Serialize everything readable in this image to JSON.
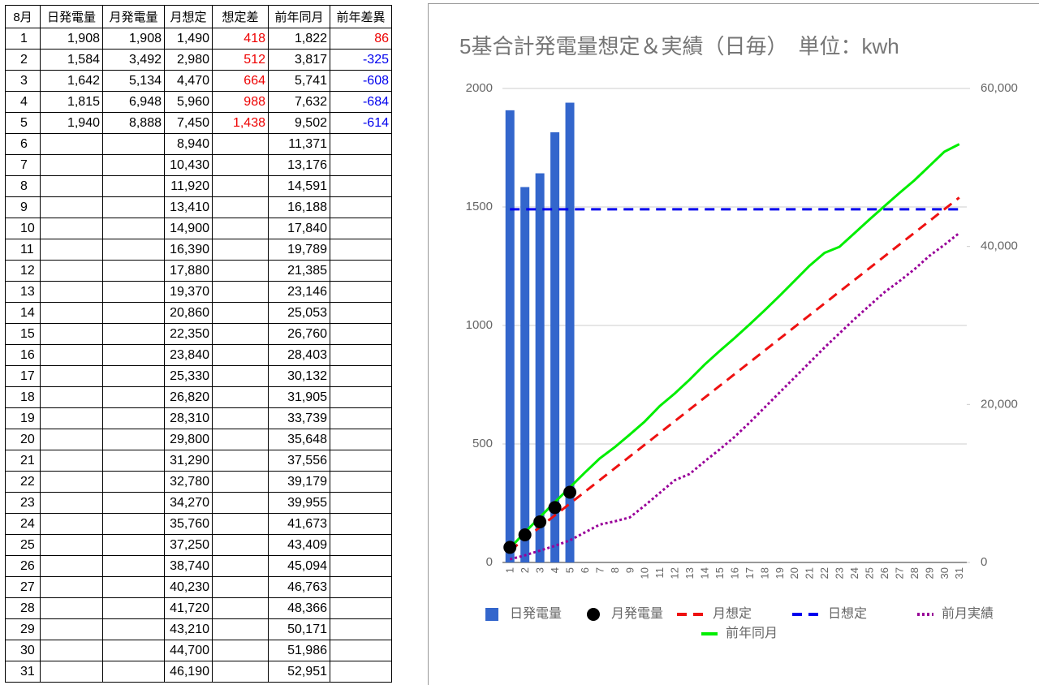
{
  "table": {
    "headers": [
      "8月",
      "日発電量",
      "月発電量",
      "月想定",
      "想定差",
      "前年同月",
      "前年差異"
    ],
    "rows": [
      [
        "1",
        "1,908",
        "1,908",
        "1,490",
        "418",
        "1,822",
        "86"
      ],
      [
        "2",
        "1,584",
        "3,492",
        "2,980",
        "512",
        "3,817",
        "-325"
      ],
      [
        "3",
        "1,642",
        "5,134",
        "4,470",
        "664",
        "5,741",
        "-608"
      ],
      [
        "4",
        "1,815",
        "6,948",
        "5,960",
        "988",
        "7,632",
        "-684"
      ],
      [
        "5",
        "1,940",
        "8,888",
        "7,450",
        "1,438",
        "9,502",
        "-614"
      ],
      [
        "6",
        null,
        null,
        "8,940",
        null,
        "11,371",
        null
      ],
      [
        "7",
        null,
        null,
        "10,430",
        null,
        "13,176",
        null
      ],
      [
        "8",
        null,
        null,
        "11,920",
        null,
        "14,591",
        null
      ],
      [
        "9",
        null,
        null,
        "13,410",
        null,
        "16,188",
        null
      ],
      [
        "10",
        null,
        null,
        "14,900",
        null,
        "17,840",
        null
      ],
      [
        "11",
        null,
        null,
        "16,390",
        null,
        "19,789",
        null
      ],
      [
        "12",
        null,
        null,
        "17,880",
        null,
        "21,385",
        null
      ],
      [
        "13",
        null,
        null,
        "19,370",
        null,
        "23,146",
        null
      ],
      [
        "14",
        null,
        null,
        "20,860",
        null,
        "25,053",
        null
      ],
      [
        "15",
        null,
        null,
        "22,350",
        null,
        "26,760",
        null
      ],
      [
        "16",
        null,
        null,
        "23,840",
        null,
        "28,403",
        null
      ],
      [
        "17",
        null,
        null,
        "25,330",
        null,
        "30,132",
        null
      ],
      [
        "18",
        null,
        null,
        "26,820",
        null,
        "31,905",
        null
      ],
      [
        "19",
        null,
        null,
        "28,310",
        null,
        "33,739",
        null
      ],
      [
        "20",
        null,
        null,
        "29,800",
        null,
        "35,648",
        null
      ],
      [
        "21",
        null,
        null,
        "31,290",
        null,
        "37,556",
        null
      ],
      [
        "22",
        null,
        null,
        "32,780",
        null,
        "39,179",
        null
      ],
      [
        "23",
        null,
        null,
        "34,270",
        null,
        "39,955",
        null
      ],
      [
        "24",
        null,
        null,
        "35,760",
        null,
        "41,673",
        null
      ],
      [
        "25",
        null,
        null,
        "37,250",
        null,
        "43,409",
        null
      ],
      [
        "26",
        null,
        null,
        "38,740",
        null,
        "45,094",
        null
      ],
      [
        "27",
        null,
        null,
        "40,230",
        null,
        "46,763",
        null
      ],
      [
        "28",
        null,
        null,
        "41,720",
        null,
        "48,366",
        null
      ],
      [
        "29",
        null,
        null,
        "43,210",
        null,
        "50,171",
        null
      ],
      [
        "30",
        null,
        null,
        "44,700",
        null,
        "51,986",
        null
      ],
      [
        "31",
        null,
        null,
        "46,190",
        null,
        "52,951",
        null
      ]
    ]
  },
  "chart_data": {
    "type": "combo",
    "title": "5基合計発電量想定＆実績（日毎）　単位：kwh",
    "categories": [
      "1",
      "2",
      "3",
      "4",
      "5",
      "6",
      "7",
      "8",
      "9",
      "10",
      "11",
      "12",
      "13",
      "14",
      "15",
      "16",
      "17",
      "18",
      "19",
      "20",
      "21",
      "22",
      "23",
      "24",
      "25",
      "26",
      "27",
      "28",
      "29",
      "30",
      "31"
    ],
    "ylim": [
      0,
      2000
    ],
    "yticks": [
      0,
      500,
      1000,
      1500,
      2000
    ],
    "y2lim": [
      0,
      60000
    ],
    "y2ticks": [
      0,
      {
        "value": 20000,
        "label": "20,000"
      },
      {
        "value": 40000,
        "label": "40,000"
      },
      {
        "value": 60000,
        "label": "60,000"
      }
    ],
    "grid": true,
    "series": [
      {
        "name": "日発電量",
        "color": "#3366cc",
        "kind": "bar",
        "values": [
          1908,
          1584,
          1642,
          1815,
          1940,
          null,
          null,
          null,
          null,
          null,
          null,
          null,
          null,
          null,
          null,
          null,
          null,
          null,
          null,
          null,
          null,
          null,
          null,
          null,
          null,
          null,
          null,
          null,
          null,
          null,
          null
        ]
      },
      {
        "name": "月発電量",
        "color": "#000000",
        "kind": "scatter",
        "axis": "y2",
        "values": [
          1908,
          3492,
          5134,
          6948,
          8888,
          null,
          null,
          null,
          null,
          null,
          null,
          null,
          null,
          null,
          null,
          null,
          null,
          null,
          null,
          null,
          null,
          null,
          null,
          null,
          null,
          null,
          null,
          null,
          null,
          null,
          null
        ]
      },
      {
        "name": "月想定",
        "color": "#ee1111",
        "kind": "line",
        "dash": "dashed",
        "axis": "y2",
        "values": [
          1490,
          2980,
          4470,
          5960,
          7450,
          8940,
          10430,
          11920,
          13410,
          14900,
          16390,
          17880,
          19370,
          20860,
          22350,
          23840,
          25330,
          26820,
          28310,
          29800,
          31290,
          32780,
          34270,
          35760,
          37250,
          38740,
          40230,
          41720,
          43210,
          44700,
          46190
        ]
      },
      {
        "name": "日想定",
        "color": "#0000ee",
        "kind": "line",
        "dash": "dashed",
        "values": [
          1490,
          1490,
          1490,
          1490,
          1490,
          1490,
          1490,
          1490,
          1490,
          1490,
          1490,
          1490,
          1490,
          1490,
          1490,
          1490,
          1490,
          1490,
          1490,
          1490,
          1490,
          1490,
          1490,
          1490,
          1490,
          1490,
          1490,
          1490,
          1490,
          1490,
          1490
        ]
      },
      {
        "name": "前月実績",
        "color": "#990099",
        "kind": "line",
        "dash": "dotted",
        "axis": "y2",
        "values": [
          400,
          900,
          1500,
          2100,
          2800,
          3800,
          4800,
          5200,
          5700,
          7200,
          8800,
          10400,
          11200,
          12800,
          14300,
          15900,
          17700,
          19600,
          21500,
          23400,
          25300,
          27200,
          29000,
          30800,
          32500,
          34200,
          35600,
          37100,
          38800,
          40200,
          41700
        ]
      },
      {
        "name": "前年同月",
        "color": "#00ee00",
        "kind": "line",
        "dash": "solid",
        "axis": "y2",
        "values": [
          1822,
          3817,
          5741,
          7632,
          9502,
          11371,
          13176,
          14591,
          16188,
          17840,
          19789,
          21385,
          23146,
          25053,
          26760,
          28403,
          30132,
          31905,
          33739,
          35648,
          37556,
          39179,
          39955,
          41673,
          43409,
          45094,
          46763,
          48366,
          50171,
          51986,
          52951
        ]
      }
    ]
  }
}
